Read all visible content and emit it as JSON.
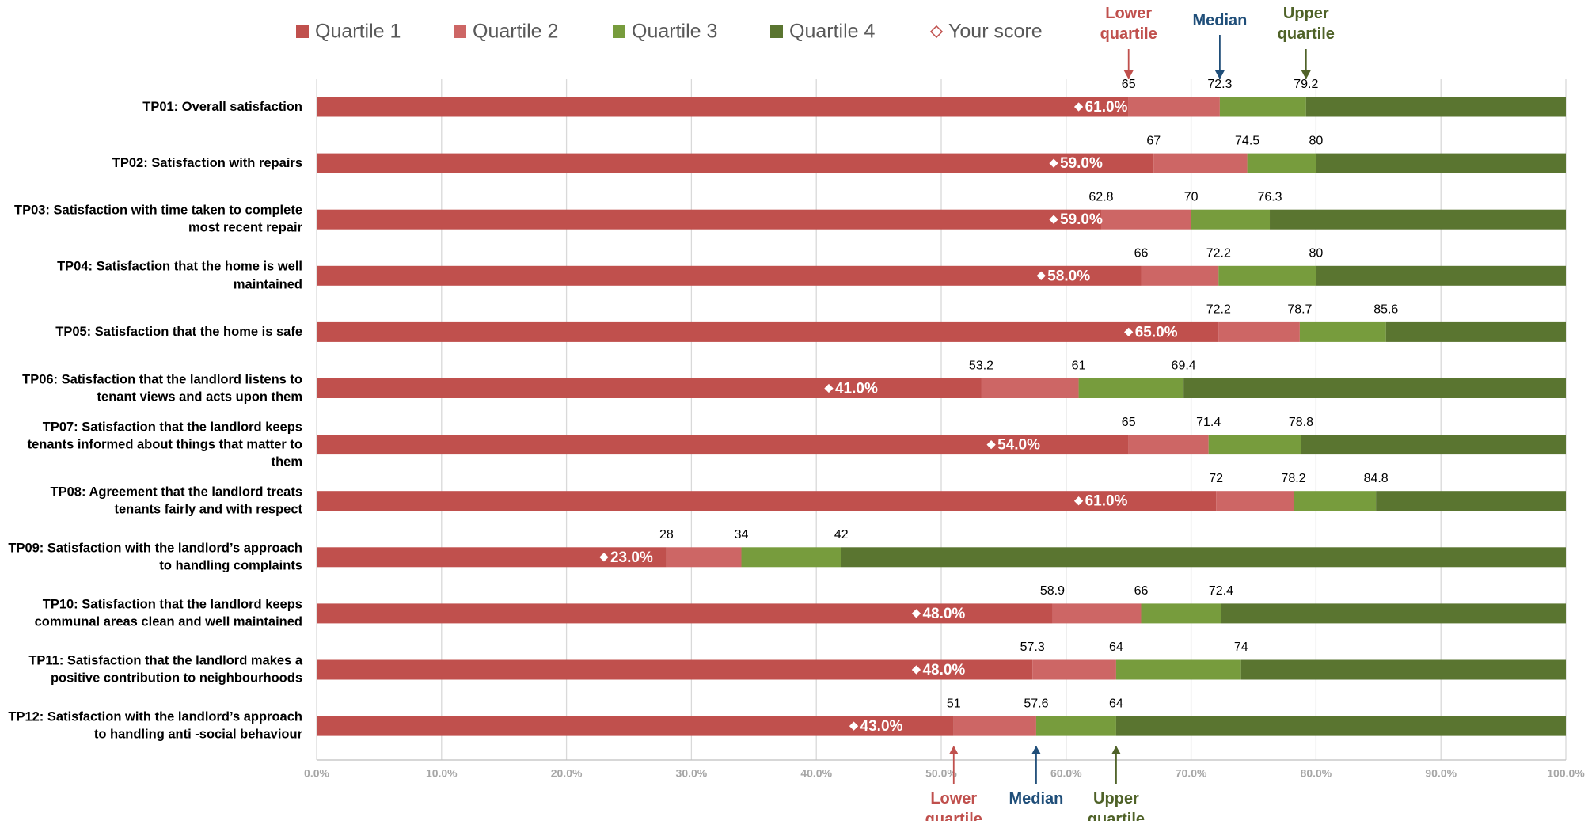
{
  "chart_data": {
    "type": "quartile_bar",
    "categories": [
      "TP01: Overall satisfaction",
      "TP02: Satisfaction with repairs",
      "TP03: Satisfaction with time taken to complete most recent repair",
      "TP04: Satisfaction that the home is well maintained",
      "TP05: Satisfaction that the home is safe",
      "TP06: Satisfaction that the landlord listens to tenant views and acts upon them",
      "TP07: Satisfaction that the landlord keeps tenants informed about things that matter to them",
      "TP08: Agreement that the landlord treats tenants fairly and with respect",
      "TP09: Satisfaction with the landlord’s approach to handling complaints",
      "TP10: Satisfaction that the landlord keeps communal areas clean and well maintained",
      "TP11: Satisfaction that the landlord makes a positive contribution to neighbourhoods",
      "TP12: Satisfaction with the landlord’s approach to handling anti -social behaviour"
    ],
    "quartiles": [
      {
        "name": "Quartile 1",
        "color": "#c0504d"
      },
      {
        "name": "Quartile 2",
        "color": "#cd6665"
      },
      {
        "name": "Quartile 3",
        "color": "#779c3d"
      },
      {
        "name": "Quartile 4",
        "color": "#5a7530"
      }
    ],
    "lower_quartile": [
      65,
      67,
      62.8,
      66,
      72.2,
      53.2,
      65,
      72,
      28,
      58.9,
      57.3,
      51
    ],
    "median": [
      72.3,
      74.5,
      70,
      72.2,
      78.7,
      61,
      71.4,
      78.2,
      34,
      66,
      64,
      57.6
    ],
    "upper_quartile": [
      79.2,
      80,
      76.3,
      80,
      85.6,
      69.4,
      78.8,
      84.8,
      42,
      72.4,
      74,
      64
    ],
    "score": {
      "name": "Your score",
      "values": [
        61,
        59,
        59,
        58,
        65,
        41,
        54,
        61,
        23,
        48,
        48,
        43
      ],
      "value_labels": [
        "61.0%",
        "59.0%",
        "59.0%",
        "58.0%",
        "65.0%",
        "41.0%",
        "54.0%",
        "61.0%",
        "23.0%",
        "48.0%",
        "48.0%",
        "43.0%"
      ]
    },
    "annotations": {
      "lower": "Lower quartile",
      "median": "Median",
      "upper": "Upper quartile"
    },
    "annotation_colors": {
      "lower": "#c0504d",
      "median": "#1f4e79",
      "upper": "#4f6228"
    },
    "xlim": [
      0,
      100
    ],
    "xticks": [
      {
        "value": 0,
        "label": "0.0%"
      },
      {
        "value": 10,
        "label": "10.0%"
      },
      {
        "value": 20,
        "label": "20.0%"
      },
      {
        "value": 30,
        "label": "30.0%"
      },
      {
        "value": 40,
        "label": "40.0%"
      },
      {
        "value": 50,
        "label": "50.0%"
      },
      {
        "value": 60,
        "label": "60.0%"
      },
      {
        "value": 70,
        "label": "70.0%"
      },
      {
        "value": 80,
        "label": "80.0%"
      },
      {
        "value": 90,
        "label": "90.0%"
      },
      {
        "value": 100,
        "label": "100.0%"
      }
    ],
    "grid": true
  }
}
